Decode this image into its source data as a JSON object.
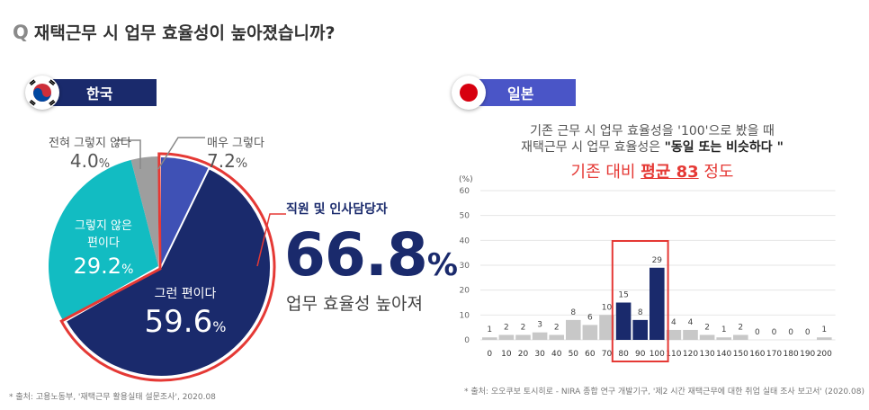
{
  "page": {
    "q_mark": "Q",
    "title": "재택근무 시 업무 효율성이 높아졌습니까?"
  },
  "korea": {
    "label": "한국",
    "slices": [
      {
        "label": "매우 그렇다",
        "value": "7.2",
        "unit": "%"
      },
      {
        "label_line1": "그런 편이다",
        "value": "59.6",
        "unit": "%"
      },
      {
        "label_line1": "그렇지 않은",
        "label_line2": "편이다",
        "value": "29.2",
        "unit": "%"
      },
      {
        "label": "전혀 그렇지 않다",
        "value": "4.0",
        "unit": "%"
      }
    ],
    "highlight_title": "직원 및 인사담당자",
    "highlight_value": "66.8",
    "highlight_unit": "%",
    "highlight_sub": "업무 효율성 높아져",
    "source": "* 출처: 고용노동부, '재택근무 활용실태 설문조사', 2020.08",
    "colors": {
      "very_yes": "#3f51b5",
      "yes": "#1a2a6c",
      "no": "#12bcc2",
      "very_no": "#9e9e9e",
      "highlight": "#e53935"
    }
  },
  "japan": {
    "label": "일본",
    "note_line1": "기존 근무 시 업무 효율성을 '100'으로 봤을 때",
    "note_line2_prefix": "재택근무 시 업무 효율성은 ",
    "note_line2_bold": "\"동일 또는 비슷하다 \"",
    "avg_prefix": "기존 대비 ",
    "avg_bold": "평균 83",
    "avg_suffix": " 정도",
    "source": "* 출처: 오오쿠보 토시히로 - NIRA 종합 연구 개발기구, '제2 시간 재택근무에 대한 취업 실태 조사 보고서' (2020.08)"
  },
  "chart_data": [
    {
      "type": "pie",
      "title": "한국",
      "categories": [
        "매우 그렇다",
        "그런 편이다",
        "그렇지 않은 편이다",
        "전혀 그렇지 않다"
      ],
      "values": [
        7.2,
        59.6,
        29.2,
        4.0
      ],
      "colors": [
        "#3f51b5",
        "#1a2a6c",
        "#12bcc2",
        "#9e9e9e"
      ]
    },
    {
      "type": "bar",
      "title": "일본",
      "ylabel": "(%)",
      "ylim": [
        0,
        60
      ],
      "yticks": [
        0,
        10,
        20,
        30,
        40,
        50,
        60
      ],
      "categories": [
        "0",
        "10",
        "20",
        "30",
        "40",
        "50",
        "60",
        "70",
        "80",
        "90",
        "100",
        "110",
        "120",
        "130",
        "140",
        "150",
        "160",
        "170",
        "180",
        "190",
        "200"
      ],
      "values": [
        1,
        2,
        2,
        3,
        2,
        8,
        6,
        10,
        15,
        8,
        29,
        4,
        4,
        2,
        1,
        2,
        0,
        0,
        0,
        0,
        1
      ],
      "highlight_categories": [
        "80",
        "90",
        "100"
      ],
      "bar_color": "#c8c8c8",
      "highlight_color": "#1a2a6c",
      "box_color": "#e53935"
    }
  ]
}
